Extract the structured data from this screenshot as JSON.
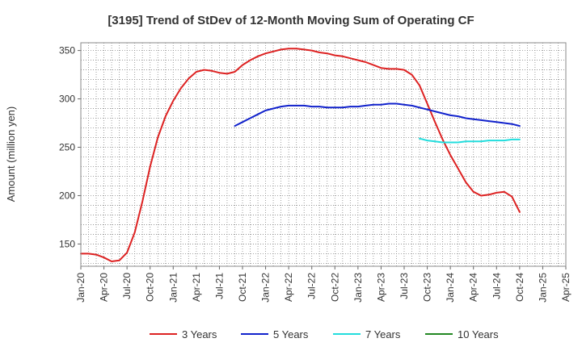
{
  "chart_data": {
    "type": "line",
    "title": "[3195]  Trend of StDev of 12-Month Moving Sum of Operating CF",
    "ylabel": "Amount (million yen)",
    "xlabel": "",
    "ylim": [
      127,
      358
    ],
    "y_ticks": [
      150,
      200,
      250,
      300,
      350
    ],
    "x_tick_labels": [
      "Jan-20",
      "Apr-20",
      "Jul-20",
      "Oct-20",
      "Jan-21",
      "Apr-21",
      "Jul-21",
      "Oct-21",
      "Jan-22",
      "Apr-22",
      "Jul-22",
      "Oct-22",
      "Jan-23",
      "Apr-23",
      "Jul-23",
      "Oct-23",
      "Jan-24",
      "Apr-24",
      "Jul-24",
      "Oct-24",
      "Jan-25",
      "Apr-25"
    ],
    "grid": true,
    "legend_position": "bottom",
    "series": [
      {
        "name": "3 Years",
        "color": "#dd2222",
        "points": [
          [
            "Jan-20",
            140
          ],
          [
            "Feb-20",
            140
          ],
          [
            "Mar-20",
            139
          ],
          [
            "Apr-20",
            136
          ],
          [
            "May-20",
            132
          ],
          [
            "Jun-20",
            133
          ],
          [
            "Jul-20",
            141
          ],
          [
            "Aug-20",
            162
          ],
          [
            "Sep-20",
            194
          ],
          [
            "Oct-20",
            230
          ],
          [
            "Nov-20",
            260
          ],
          [
            "Dec-20",
            282
          ],
          [
            "Jan-21",
            298
          ],
          [
            "Feb-21",
            311
          ],
          [
            "Mar-21",
            321
          ],
          [
            "Apr-21",
            328
          ],
          [
            "May-21",
            330
          ],
          [
            "Jun-21",
            329
          ],
          [
            "Jul-21",
            327
          ],
          [
            "Aug-21",
            326
          ],
          [
            "Sep-21",
            328
          ],
          [
            "Oct-21",
            335
          ],
          [
            "Nov-21",
            340
          ],
          [
            "Dec-21",
            344
          ],
          [
            "Jan-22",
            347
          ],
          [
            "Feb-22",
            349
          ],
          [
            "Mar-22",
            351
          ],
          [
            "Apr-22",
            352
          ],
          [
            "May-22",
            352
          ],
          [
            "Jun-22",
            351
          ],
          [
            "Jul-22",
            350
          ],
          [
            "Aug-22",
            348
          ],
          [
            "Sep-22",
            347
          ],
          [
            "Oct-22",
            345
          ],
          [
            "Nov-22",
            344
          ],
          [
            "Dec-22",
            342
          ],
          [
            "Jan-23",
            340
          ],
          [
            "Feb-23",
            338
          ],
          [
            "Mar-23",
            335
          ],
          [
            "Apr-23",
            332
          ],
          [
            "May-23",
            331
          ],
          [
            "Jun-23",
            331
          ],
          [
            "Jul-23",
            330
          ],
          [
            "Aug-23",
            325
          ],
          [
            "Sep-23",
            314
          ],
          [
            "Oct-23",
            295
          ],
          [
            "Nov-23",
            276
          ],
          [
            "Dec-23",
            258
          ],
          [
            "Jan-24",
            242
          ],
          [
            "Feb-24",
            228
          ],
          [
            "Mar-24",
            214
          ],
          [
            "Apr-24",
            204
          ],
          [
            "May-24",
            200
          ],
          [
            "Jun-24",
            201
          ],
          [
            "Jul-24",
            203
          ],
          [
            "Aug-24",
            204
          ],
          [
            "Sep-24",
            199
          ],
          [
            "Oct-24",
            183
          ]
        ]
      },
      {
        "name": "5 Years",
        "color": "#1122cc",
        "points": [
          [
            "Sep-21",
            272
          ],
          [
            "Oct-21",
            276
          ],
          [
            "Nov-21",
            280
          ],
          [
            "Dec-21",
            284
          ],
          [
            "Jan-22",
            288
          ],
          [
            "Feb-22",
            290
          ],
          [
            "Mar-22",
            292
          ],
          [
            "Apr-22",
            293
          ],
          [
            "May-22",
            293
          ],
          [
            "Jun-22",
            293
          ],
          [
            "Jul-22",
            292
          ],
          [
            "Aug-22",
            292
          ],
          [
            "Sep-22",
            291
          ],
          [
            "Oct-22",
            291
          ],
          [
            "Nov-22",
            291
          ],
          [
            "Dec-22",
            292
          ],
          [
            "Jan-23",
            292
          ],
          [
            "Feb-23",
            293
          ],
          [
            "Mar-23",
            294
          ],
          [
            "Apr-23",
            294
          ],
          [
            "May-23",
            295
          ],
          [
            "Jun-23",
            295
          ],
          [
            "Jul-23",
            294
          ],
          [
            "Aug-23",
            293
          ],
          [
            "Sep-23",
            291
          ],
          [
            "Oct-23",
            289
          ],
          [
            "Nov-23",
            287
          ],
          [
            "Dec-23",
            285
          ],
          [
            "Jan-24",
            283
          ],
          [
            "Feb-24",
            282
          ],
          [
            "Mar-24",
            280
          ],
          [
            "Apr-24",
            279
          ],
          [
            "May-24",
            278
          ],
          [
            "Jun-24",
            277
          ],
          [
            "Jul-24",
            276
          ],
          [
            "Aug-24",
            275
          ],
          [
            "Sep-24",
            274
          ],
          [
            "Oct-24",
            272
          ]
        ]
      },
      {
        "name": "7 Years",
        "color": "#22dddd",
        "points": [
          [
            "Sep-23",
            259
          ],
          [
            "Oct-23",
            257
          ],
          [
            "Nov-23",
            256
          ],
          [
            "Dec-23",
            255
          ],
          [
            "Jan-24",
            255
          ],
          [
            "Feb-24",
            255
          ],
          [
            "Mar-24",
            256
          ],
          [
            "Apr-24",
            256
          ],
          [
            "May-24",
            256
          ],
          [
            "Jun-24",
            257
          ],
          [
            "Jul-24",
            257
          ],
          [
            "Aug-24",
            257
          ],
          [
            "Sep-24",
            258
          ],
          [
            "Oct-24",
            258
          ]
        ]
      },
      {
        "name": "10 Years",
        "color": "#228822",
        "points": []
      }
    ]
  }
}
